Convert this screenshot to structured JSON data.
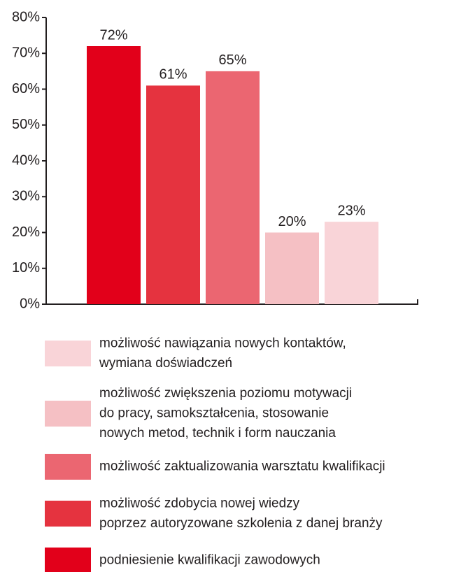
{
  "chart_data": {
    "type": "bar",
    "categories": [
      null,
      null,
      null,
      null,
      null
    ],
    "values": [
      72,
      61,
      65,
      20,
      23
    ],
    "value_labels": [
      "72%",
      "61%",
      "65%",
      "20%",
      "23%"
    ],
    "colors": [
      "#e2001a",
      "#e5333f",
      "#eb6671",
      "#f5c0c4",
      "#f9d4d8"
    ],
    "names": [
      [
        "podniesienie kwalifikacji zawodowych"
      ],
      [
        "możliwość zdobycia nowej wiedzy",
        "poprzez autoryzowane szkolenia z danej branży"
      ],
      [
        "możliwość zaktualizowania warsztatu kwalifikacji"
      ],
      [
        "możliwość zwiększenia poziomu motywacji",
        "do pracy, samokształcenia, stosowanie",
        "nowych metod, technik i form nauczania"
      ],
      [
        "możliwość nawiązania nowych kontaktów,",
        "wymiana doświadczeń"
      ]
    ],
    "ylim": [
      0,
      80
    ],
    "yticks": [
      {
        "value": 0,
        "label": "0%"
      },
      {
        "value": 10,
        "label": "10%"
      },
      {
        "value": 20,
        "label": "20%"
      },
      {
        "value": 30,
        "label": "30%"
      },
      {
        "value": 40,
        "label": "40%"
      },
      {
        "value": 50,
        "label": "50%"
      },
      {
        "value": 60,
        "label": "60%"
      },
      {
        "value": 70,
        "label": "70%"
      },
      {
        "value": 80,
        "label": "80%"
      }
    ],
    "legend": "bottom"
  }
}
